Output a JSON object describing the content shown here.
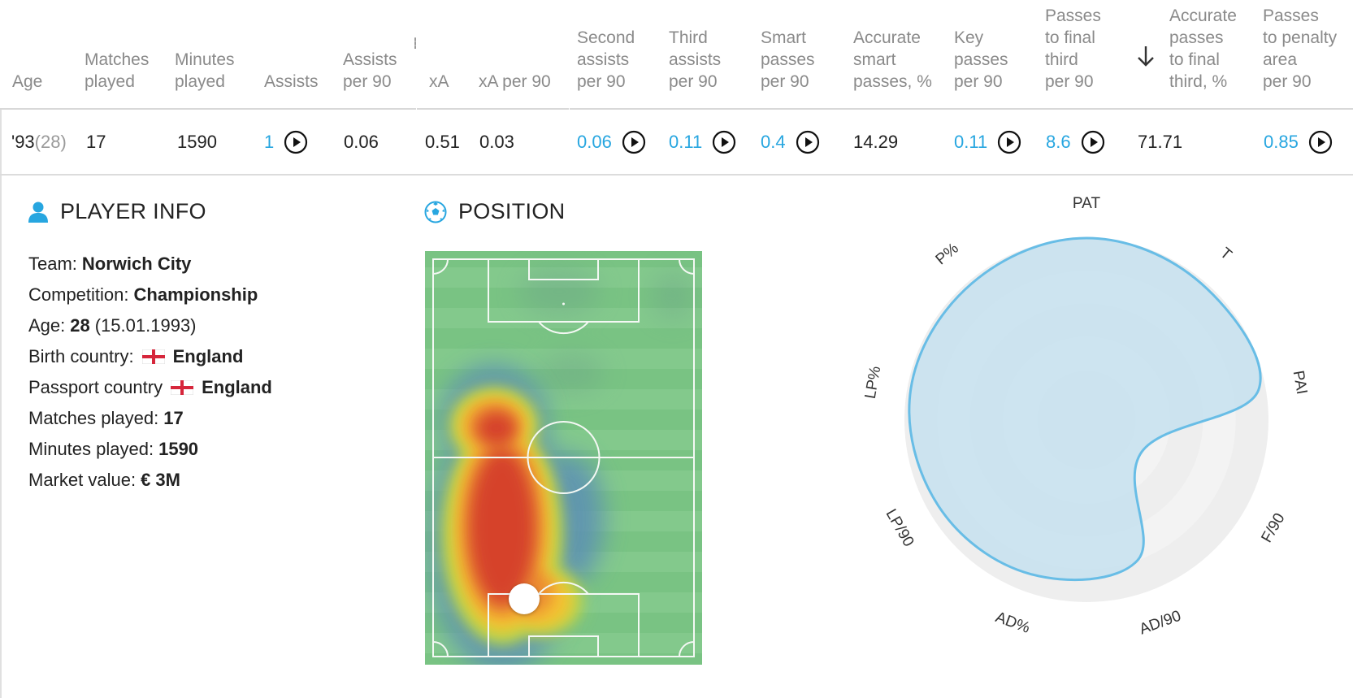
{
  "table": {
    "headers": [
      {
        "key": "age",
        "label": "Age"
      },
      {
        "key": "matches",
        "label": "Matches\nplayed"
      },
      {
        "key": "minutes",
        "label": "Minutes\nplayed"
      },
      {
        "key": "assists",
        "label": "Assists"
      },
      {
        "key": "assists90",
        "label": "Assists\nper 90"
      },
      {
        "key": "xa",
        "label": "xA"
      },
      {
        "key": "xa90",
        "label": "xA per 90"
      },
      {
        "key": "second90",
        "label": "Second\nassists\nper 90"
      },
      {
        "key": "third90",
        "label": "Third\nassists\nper 90"
      },
      {
        "key": "smart90",
        "label": "Smart\npasses\nper 90"
      },
      {
        "key": "smartpct",
        "label": "Accurate\nsmart\npasses, %"
      },
      {
        "key": "key90",
        "label": "Key\npasses\nper 90"
      },
      {
        "key": "final90",
        "label": "Passes\nto final\nthird\nper 90"
      },
      {
        "key": "finalpct",
        "label": "Accurate\npasses\nto final\nthird, %"
      },
      {
        "key": "pen90",
        "label": "Passes\nto penalty\narea\nper 90"
      }
    ],
    "sort_icon": "arrow-down-icon",
    "row": {
      "age_year": "'93",
      "age_years": "(28)",
      "matches": "17",
      "minutes": "1590",
      "assists": "1",
      "assists90": "0.06",
      "xa": "0.51",
      "xa90": "0.03",
      "second90": "0.06",
      "third90": "0.11",
      "smart90": "0.4",
      "smartpct": "14.29",
      "key90": "0.11",
      "final90": "8.6",
      "finalpct": "71.71",
      "pen90": "0.85"
    },
    "play_icon": "play-circle-icon",
    "link_color": "#27a6e0"
  },
  "player_info": {
    "title": "PLAYER INFO",
    "icon": "person-icon",
    "team_label": "Team:",
    "team": "Norwich City",
    "competition_label": "Competition:",
    "competition": "Championship",
    "age_label": "Age:",
    "age": "28",
    "birth_date": "(15.01.1993)",
    "birth_country_label": "Birth country:",
    "birth_country": "England",
    "passport_country_label": "Passport country",
    "passport_country": "England",
    "matches_label": "Matches played:",
    "matches": "17",
    "minutes_label": "Minutes played:",
    "minutes": "1590",
    "market_value_label": "Market value:",
    "market_value": "€ 3M"
  },
  "position": {
    "title": "POSITION",
    "icon": "soccer-ball-icon"
  },
  "radar": {
    "axes": [
      "PAT",
      "T",
      "PAI",
      "F/90",
      "AD/90",
      "AD%",
      "LP/90",
      "LP%",
      "P%"
    ],
    "values": [
      1.0,
      0.98,
      0.96,
      0.35,
      0.82,
      0.9,
      0.94,
      0.98,
      0.98
    ],
    "fill_color": "#c6e1ef",
    "stroke_color": "#68bde6"
  }
}
